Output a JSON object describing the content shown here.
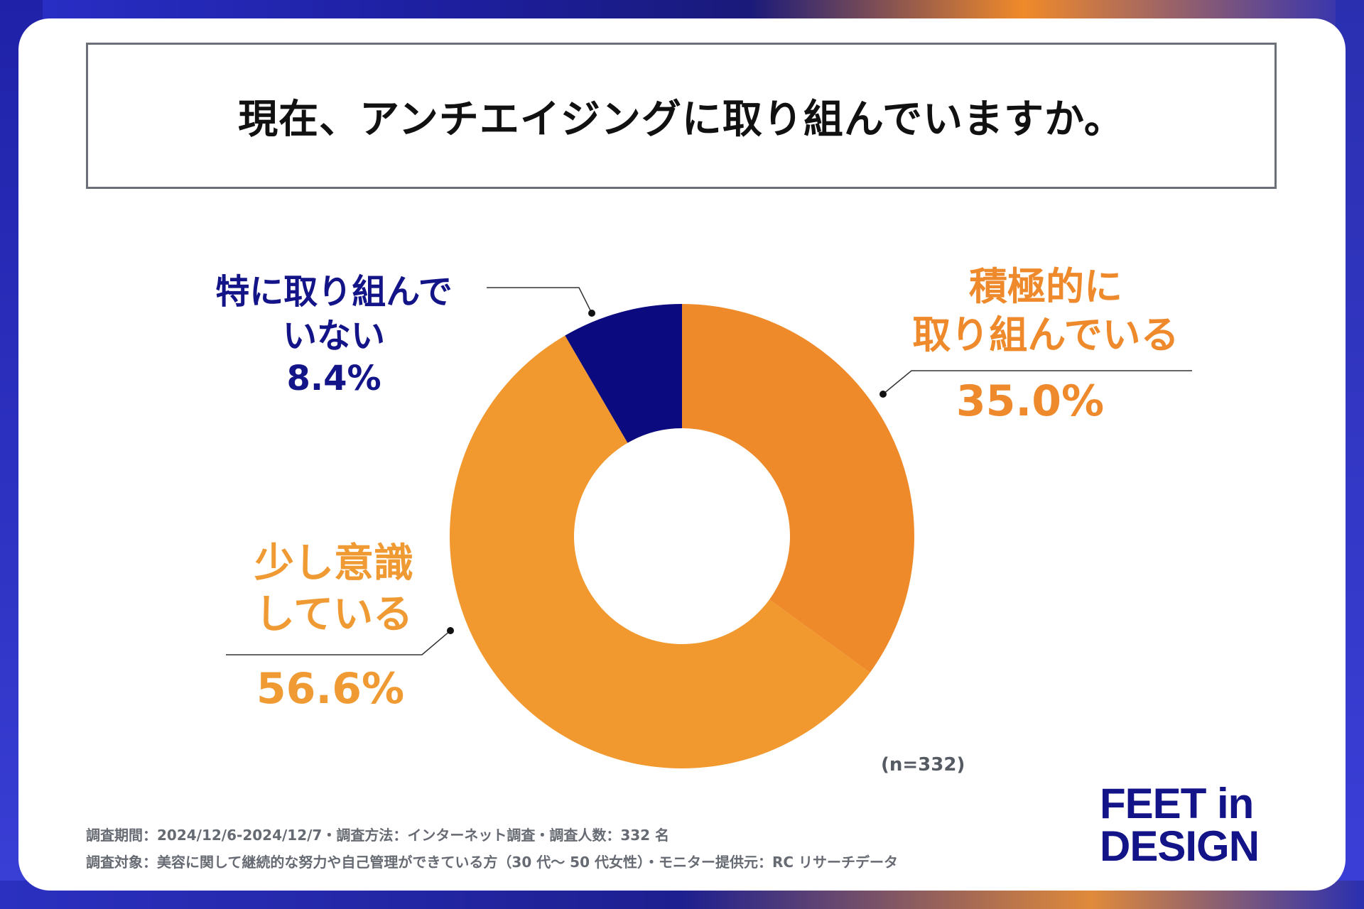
{
  "title": "現在、アンチエイジングに取り組んでいますか。",
  "chart_data": {
    "type": "pie",
    "variant": "donut",
    "categories": [
      "積極的に取り組んでいる",
      "少し意識している",
      "特に取り組んでいない"
    ],
    "values": [
      35.0,
      56.6,
      8.4
    ],
    "unit": "%",
    "colors": [
      "#ef8a2a",
      "#f1982e",
      "#0c0a7f"
    ],
    "sample_note": "(n=332)"
  },
  "labels": {
    "active_line1": "積極的に",
    "active_line2": "取り組んでいる",
    "active_pct": "35.0%",
    "some_line1": "少し意識",
    "some_line2": "している",
    "some_pct": "56.6%",
    "none_line1": "特に取り組んで",
    "none_line2": "いない",
    "none_pct": "8.4%"
  },
  "footer": {
    "line1": "調査期間：2024/12/6-2024/12/7・調査方法：インターネット調査・調査人数：332 名",
    "line2": "調査対象：美容に関して継続的な努力や自己管理ができている方（30 代～ 50 代女性）・モニター提供元：RC リサーチデータ"
  },
  "logo": {
    "line1": "FEET in",
    "line2": "DESIGN"
  }
}
